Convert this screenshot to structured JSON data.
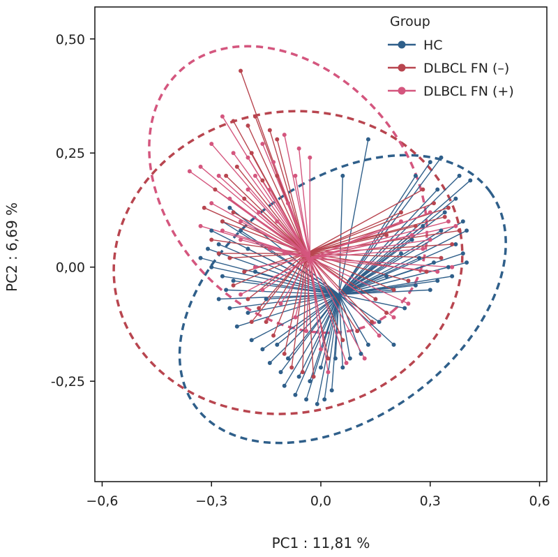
{
  "chart_data": {
    "type": "scatter",
    "title": "",
    "xlabel": "PC1 : 11,81 %",
    "ylabel": "PC2 : 6,69 %",
    "xlim": [
      -0.62,
      0.62
    ],
    "ylim": [
      -0.47,
      0.57
    ],
    "x_ticks": [
      -0.6,
      -0.3,
      0.0,
      0.3,
      0.6
    ],
    "x_tick_labels": [
      "−0,6",
      "−0,3",
      "0,0",
      "0,3",
      "0,6"
    ],
    "y_ticks": [
      -0.25,
      0.0,
      0.25,
      0.5
    ],
    "y_tick_labels": [
      "-0,25",
      "0,00",
      "0,25",
      "0,50"
    ],
    "grid": false,
    "legend": {
      "title": "Group",
      "placement": "top-right",
      "entries": [
        "HC",
        "DLBCL FN (–)",
        "DLBCL FN (+)"
      ]
    },
    "spider": true,
    "ellipses_dashed": true,
    "series": [
      {
        "name": "HC",
        "color": "#2f5f8a",
        "centroid": [
          0.05,
          -0.06
        ],
        "ellipse": {
          "cx": 0.06,
          "cy": -0.07,
          "rx": 0.5,
          "ry": 0.26,
          "angle_deg": 36
        },
        "points": [
          [
            0.3,
            0.23
          ],
          [
            0.33,
            0.24
          ],
          [
            0.38,
            0.2
          ],
          [
            0.41,
            0.19
          ],
          [
            0.26,
            0.2
          ],
          [
            0.32,
            0.17
          ],
          [
            0.37,
            0.15
          ],
          [
            0.34,
            0.12
          ],
          [
            0.39,
            0.1
          ],
          [
            0.4,
            0.08
          ],
          [
            0.33,
            0.08
          ],
          [
            0.28,
            0.09
          ],
          [
            0.25,
            0.06
          ],
          [
            0.37,
            0.05
          ],
          [
            0.39,
            0.03
          ],
          [
            0.4,
            0.01
          ],
          [
            0.35,
            0.0
          ],
          [
            0.31,
            0.01
          ],
          [
            0.27,
            0.02
          ],
          [
            0.22,
            0.03
          ],
          [
            0.32,
            -0.03
          ],
          [
            0.36,
            -0.02
          ],
          [
            0.26,
            -0.04
          ],
          [
            0.3,
            -0.05
          ],
          [
            0.2,
            -0.05
          ],
          [
            0.23,
            -0.09
          ],
          [
            0.18,
            -0.02
          ],
          [
            0.16,
            -0.12
          ],
          [
            0.2,
            -0.17
          ],
          [
            0.13,
            0.28
          ],
          [
            0.06,
            0.2
          ],
          [
            -0.25,
            0.13
          ],
          [
            -0.27,
            0.1
          ],
          [
            -0.3,
            0.08
          ],
          [
            -0.28,
            0.05
          ],
          [
            -0.31,
            0.04
          ],
          [
            -0.33,
            0.02
          ],
          [
            -0.3,
            0.0
          ],
          [
            -0.27,
            -0.02
          ],
          [
            -0.24,
            -0.03
          ],
          [
            -0.26,
            -0.05
          ],
          [
            -0.28,
            -0.07
          ],
          [
            -0.25,
            -0.09
          ],
          [
            -0.2,
            -0.1
          ],
          [
            -0.23,
            -0.13
          ],
          [
            -0.19,
            -0.16
          ],
          [
            -0.16,
            -0.18
          ],
          [
            -0.14,
            -0.21
          ],
          [
            -0.11,
            -0.23
          ],
          [
            -0.1,
            -0.26
          ],
          [
            -0.07,
            -0.28
          ],
          [
            -0.04,
            -0.29
          ],
          [
            -0.01,
            -0.3
          ],
          [
            0.01,
            -0.29
          ],
          [
            0.03,
            -0.27
          ],
          [
            -0.03,
            -0.25
          ],
          [
            0.06,
            -0.22
          ],
          [
            0.08,
            -0.2
          ],
          [
            0.11,
            -0.19
          ],
          [
            0.0,
            -0.22
          ],
          [
            -0.06,
            -0.24
          ],
          [
            -0.09,
            -0.2
          ],
          [
            -0.12,
            -0.17
          ],
          [
            0.04,
            -0.2
          ],
          [
            0.13,
            -0.17
          ],
          [
            -0.15,
            -0.07
          ],
          [
            -0.18,
            -0.01
          ],
          [
            -0.2,
            0.04
          ],
          [
            -0.22,
            0.08
          ]
        ]
      },
      {
        "name": "DLBCL FN (–)",
        "color": "#b8454f",
        "centroid": [
          -0.04,
          0.03
        ],
        "ellipse": {
          "cx": -0.09,
          "cy": 0.01,
          "rx": 0.48,
          "ry": 0.33,
          "angle_deg": 10
        },
        "points": [
          [
            -0.22,
            0.43
          ],
          [
            -0.24,
            0.32
          ],
          [
            -0.2,
            0.31
          ],
          [
            -0.18,
            0.33
          ],
          [
            -0.14,
            0.3
          ],
          [
            -0.12,
            0.28
          ],
          [
            -0.19,
            0.25
          ],
          [
            -0.23,
            0.22
          ],
          [
            -0.26,
            0.2
          ],
          [
            -0.29,
            0.17
          ],
          [
            -0.16,
            0.19
          ],
          [
            -0.21,
            0.15
          ],
          [
            -0.24,
            0.12
          ],
          [
            -0.27,
            0.1
          ],
          [
            -0.3,
            0.06
          ],
          [
            -0.28,
            0.03
          ],
          [
            -0.25,
            0.02
          ],
          [
            -0.21,
            -0.01
          ],
          [
            -0.24,
            -0.04
          ],
          [
            -0.2,
            -0.07
          ],
          [
            -0.17,
            -0.09
          ],
          [
            -0.15,
            -0.12
          ],
          [
            -0.19,
            -0.12
          ],
          [
            -0.13,
            -0.15
          ],
          [
            -0.1,
            -0.19
          ],
          [
            -0.08,
            -0.22
          ],
          [
            -0.05,
            -0.23
          ],
          [
            -0.02,
            -0.24
          ],
          [
            0.02,
            -0.2
          ],
          [
            0.06,
            -0.16
          ],
          [
            0.1,
            -0.14
          ],
          [
            0.14,
            -0.12
          ],
          [
            0.18,
            -0.1
          ],
          [
            0.15,
            -0.07
          ],
          [
            0.2,
            -0.05
          ],
          [
            0.24,
            -0.03
          ],
          [
            0.29,
            -0.01
          ],
          [
            0.33,
            0.02
          ],
          [
            0.36,
            0.05
          ],
          [
            0.38,
            0.08
          ],
          [
            0.34,
            0.11
          ],
          [
            0.31,
            0.14
          ],
          [
            0.28,
            0.17
          ],
          [
            0.35,
            0.13
          ],
          [
            0.22,
            0.12
          ],
          [
            0.26,
            0.09
          ],
          [
            0.18,
            0.07
          ],
          [
            -0.32,
            0.13
          ],
          [
            -0.12,
            0.2
          ]
        ]
      },
      {
        "name": "DLBCL FN (+)",
        "color": "#d4567e",
        "centroid": [
          -0.03,
          0.02
        ],
        "ellipse": {
          "cx": -0.09,
          "cy": 0.17,
          "rx": 0.44,
          "ry": 0.26,
          "angle_deg": -48
        },
        "points": [
          [
            -0.27,
            0.33
          ],
          [
            -0.3,
            0.27
          ],
          [
            -0.33,
            0.22
          ],
          [
            -0.36,
            0.21
          ],
          [
            -0.28,
            0.2
          ],
          [
            -0.24,
            0.25
          ],
          [
            -0.2,
            0.24
          ],
          [
            -0.16,
            0.27
          ],
          [
            -0.13,
            0.23
          ],
          [
            -0.1,
            0.29
          ],
          [
            -0.06,
            0.26
          ],
          [
            -0.03,
            0.24
          ],
          [
            -0.07,
            0.2
          ],
          [
            -0.14,
            0.17
          ],
          [
            -0.2,
            0.17
          ],
          [
            -0.25,
            0.15
          ],
          [
            -0.3,
            0.14
          ],
          [
            -0.33,
            0.09
          ],
          [
            -0.27,
            0.08
          ],
          [
            -0.22,
            0.06
          ],
          [
            -0.17,
            0.12
          ],
          [
            -0.12,
            0.1
          ],
          [
            -0.09,
            0.14
          ],
          [
            -0.14,
            0.04
          ],
          [
            -0.1,
            0.03
          ],
          [
            -0.18,
            0.0
          ],
          [
            -0.22,
            -0.06
          ],
          [
            -0.16,
            -0.05
          ],
          [
            -0.11,
            -0.08
          ],
          [
            -0.07,
            -0.11
          ],
          [
            -0.04,
            -0.14
          ],
          [
            0.0,
            -0.18
          ],
          [
            0.02,
            -0.23
          ],
          [
            0.07,
            -0.21
          ],
          [
            0.12,
            -0.2
          ],
          [
            0.16,
            -0.15
          ],
          [
            0.2,
            -0.11
          ],
          [
            0.24,
            -0.08
          ],
          [
            0.3,
            0.12
          ],
          [
            0.35,
            0.1
          ],
          [
            0.37,
            0.09
          ],
          [
            0.3,
            0.06
          ],
          [
            0.25,
            0.07
          ],
          [
            0.22,
            0.1
          ],
          [
            0.28,
            0.04
          ],
          [
            0.32,
            -0.01
          ],
          [
            0.36,
            0.0
          ],
          [
            -0.18,
            0.2
          ],
          [
            -0.22,
            0.1
          ]
        ]
      }
    ]
  }
}
